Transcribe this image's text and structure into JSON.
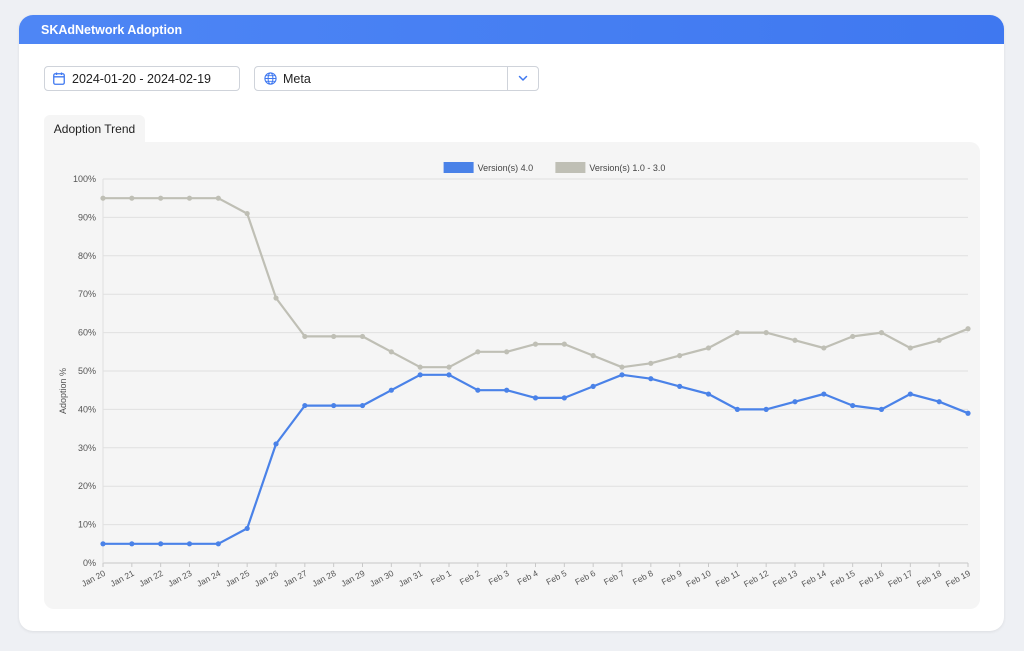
{
  "header": {
    "title": "SKAdNetwork Adoption"
  },
  "filters": {
    "date_range": "2024-01-20 - 2024-02-19",
    "app_select": "Meta"
  },
  "tabs": [
    {
      "label": "Adoption Trend"
    }
  ],
  "colors": {
    "series_v4": "#4a82e8",
    "series_legacy": "#bfbfb5",
    "header": "#4a82f3"
  },
  "chart_data": {
    "type": "line",
    "ylabel": "Adoption %",
    "xlabel": "",
    "ylim": [
      0,
      100
    ],
    "yticks": [
      "0%",
      "10%",
      "20%",
      "30%",
      "40%",
      "50%",
      "60%",
      "70%",
      "80%",
      "90%",
      "100%"
    ],
    "ytick_values": [
      0,
      10,
      20,
      30,
      40,
      50,
      60,
      70,
      80,
      90,
      100
    ],
    "grid": true,
    "legend_position": "top-center",
    "categories": [
      "Jan 20",
      "Jan 21",
      "Jan 22",
      "Jan 23",
      "Jan 24",
      "Jan 25",
      "Jan 26",
      "Jan 27",
      "Jan 28",
      "Jan 29",
      "Jan 30",
      "Jan 31",
      "Feb 1",
      "Feb 2",
      "Feb 3",
      "Feb 4",
      "Feb 5",
      "Feb 6",
      "Feb 7",
      "Feb 8",
      "Feb 9",
      "Feb 10",
      "Feb 11",
      "Feb 12",
      "Feb 13",
      "Feb 14",
      "Feb 15",
      "Feb 16",
      "Feb 17",
      "Feb 18",
      "Feb 19"
    ],
    "series": [
      {
        "name": "Version(s) 4.0",
        "color": "#4a82e8",
        "values": [
          5,
          5,
          5,
          5,
          5,
          9,
          31,
          41,
          41,
          41,
          45,
          49,
          49,
          45,
          45,
          43,
          43,
          46,
          49,
          48,
          46,
          44,
          40,
          40,
          42,
          44,
          41,
          40,
          44,
          42,
          39
        ]
      },
      {
        "name": "Version(s) 1.0 - 3.0",
        "color": "#bfbfb5",
        "values": [
          95,
          95,
          95,
          95,
          95,
          91,
          69,
          59,
          59,
          59,
          55,
          51,
          51,
          55,
          55,
          57,
          57,
          54,
          51,
          52,
          54,
          56,
          60,
          60,
          58,
          56,
          59,
          60,
          56,
          58,
          61
        ]
      }
    ]
  }
}
